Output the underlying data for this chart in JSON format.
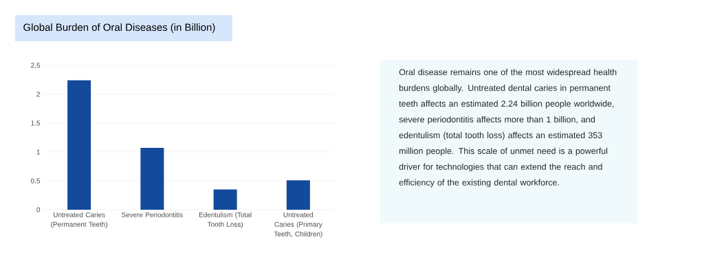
{
  "chart_data": {
    "type": "bar",
    "title": "Global Burden of Oral Diseases (in Billion)",
    "categories": [
      "Untreated Caries (Permanent Teeth)",
      "Severe Periodontitis",
      "Edentulism (Total Tooth Loss)",
      "Untreated Caries (Primary Teeth, Children)"
    ],
    "values": [
      2.24,
      1.07,
      0.35,
      0.51
    ],
    "color": "#134a9b",
    "ylim": [
      0,
      2.5
    ],
    "yticks": [
      0,
      0.5,
      1,
      1.5,
      2,
      2.5
    ],
    "grid": "y",
    "annotations": [
      "Oral disease remains one of the most widespread health burdens globally. Untreated dental caries in permanent teeth affects an estimated 2.24 billion people worldwide, severe periodontitis affects more than 1 billion, and edentulism (total tooth loss) affects an estimated 353 million people. This scale of unmet need is a powerful driver for technologies that can extend the reach and efficiency of the existing dental workforce."
    ]
  }
}
